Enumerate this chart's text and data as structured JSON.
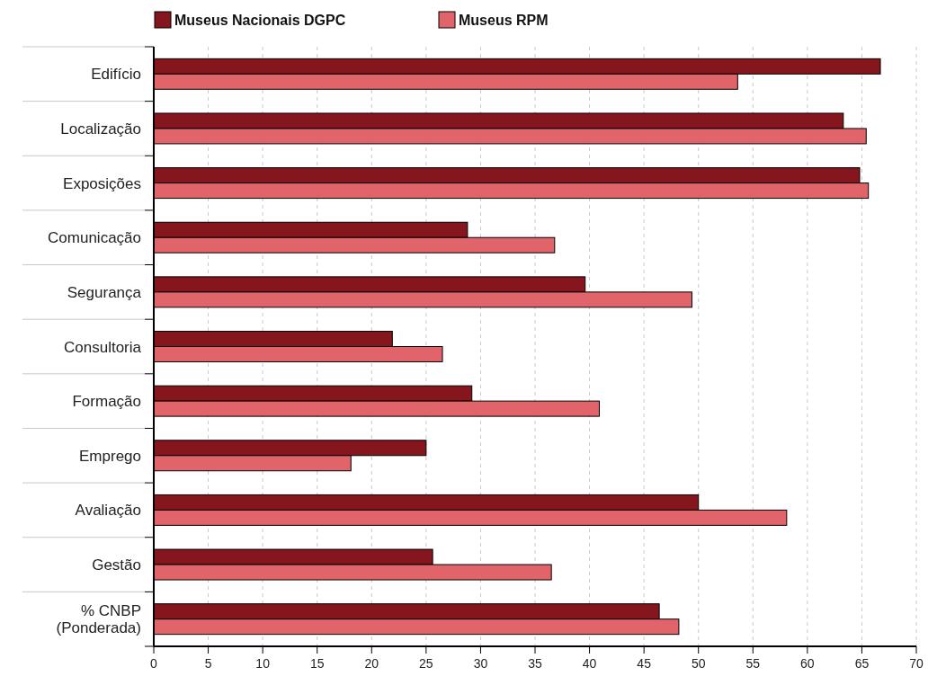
{
  "chart_data": {
    "type": "bar",
    "orientation": "horizontal",
    "categories": [
      "Edifício",
      "Localização",
      "Exposições",
      "Comunicação",
      "Segurança",
      "Consultoria",
      "Formação",
      "Emprego",
      "Avaliação",
      "Gestão",
      "% CNBP\n(Ponderada)"
    ],
    "series": [
      {
        "name": "Museus Nacionais DGPC",
        "color": "#86161d",
        "values": [
          66.7,
          63.3,
          64.8,
          28.8,
          39.6,
          21.9,
          29.2,
          25.0,
          50.0,
          25.6,
          46.4
        ]
      },
      {
        "name": "Museus RPM",
        "color": "#e0646a",
        "values": [
          53.6,
          65.4,
          65.6,
          36.8,
          49.4,
          26.5,
          40.9,
          18.1,
          58.1,
          36.5,
          48.2
        ]
      }
    ],
    "xlim": [
      0,
      70
    ],
    "xticks": [
      0,
      5,
      10,
      15,
      20,
      25,
      30,
      35,
      40,
      45,
      50,
      55,
      60,
      65,
      70
    ],
    "grid": "x",
    "legend": "top left"
  }
}
